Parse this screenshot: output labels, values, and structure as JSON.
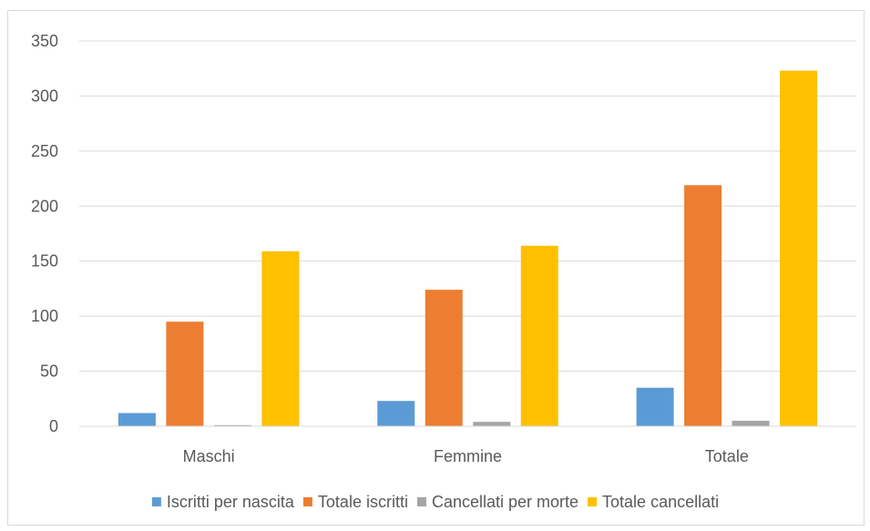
{
  "chart_data": {
    "type": "bar",
    "title": "",
    "xlabel": "",
    "ylabel": "",
    "categories": [
      "Maschi",
      "Femmine",
      "Totale"
    ],
    "series": [
      {
        "name": "Iscritti per nascita",
        "values": [
          12,
          23,
          35
        ],
        "color": "#5b9bd5"
      },
      {
        "name": "Totale iscritti",
        "values": [
          95,
          124,
          219
        ],
        "color": "#ed7d31"
      },
      {
        "name": "Cancellati per morte",
        "values": [
          1,
          4,
          5
        ],
        "color": "#a5a5a5"
      },
      {
        "name": "Totale cancellati",
        "values": [
          159,
          164,
          323
        ],
        "color": "#ffc000"
      }
    ],
    "ylim": [
      0,
      350
    ],
    "yticks": [
      0,
      50,
      100,
      150,
      200,
      250,
      300,
      350
    ],
    "grid": true,
    "legend_position": "bottom"
  }
}
